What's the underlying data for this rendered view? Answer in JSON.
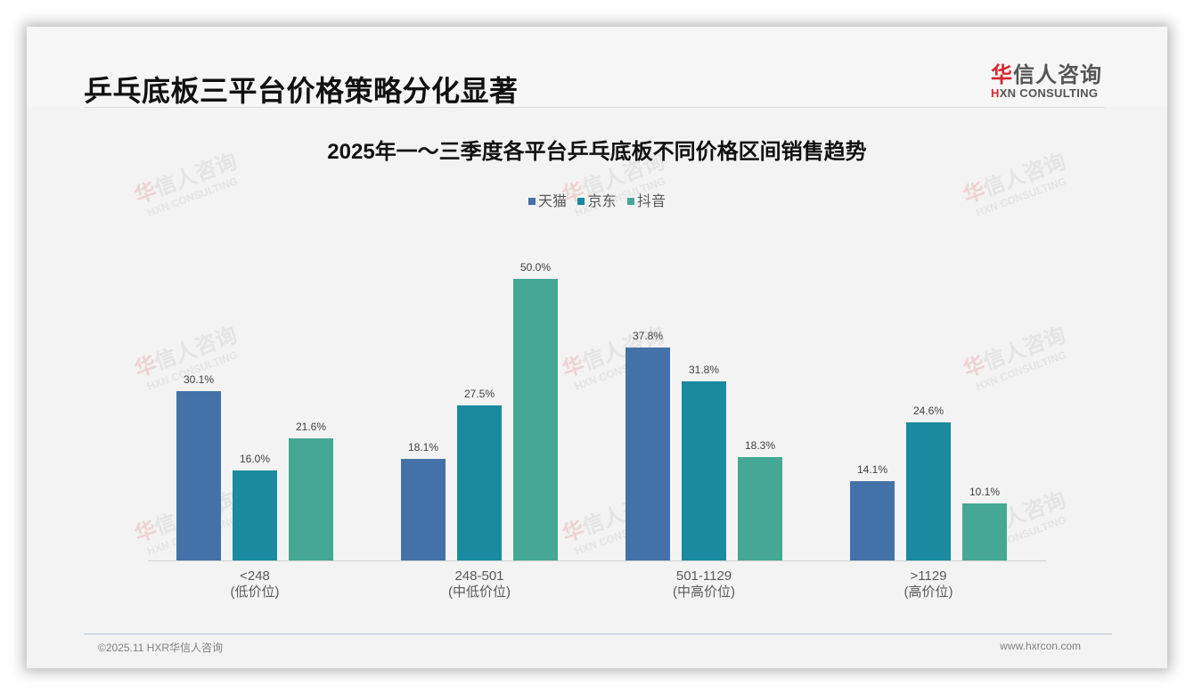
{
  "page": {
    "title": "乒乓底板三平台价格策略分化显著",
    "logo": {
      "cn_red": "华",
      "cn_rest": "信人咨询",
      "en_red": "H",
      "en_rest": "XN CONSULTING"
    },
    "watermark": {
      "cn_red": "华",
      "cn_rest": "信人咨询",
      "en": "HXN CONSULTING"
    },
    "footer": {
      "left": "©2025.11 HXR华信人咨询",
      "right": "www.hxrcon.com"
    }
  },
  "colors": {
    "tmall": "#4472a8",
    "jd": "#1a8aa0",
    "douyin": "#44a894"
  },
  "chart_data": {
    "type": "bar",
    "title": "2025年一～三季度各平台乒乓底板不同价格区间销售趋势",
    "xlabel": "",
    "ylabel": "",
    "ylim": [
      0,
      55
    ],
    "grid": false,
    "legend_position": "top",
    "categories": [
      "<248\n(低价位)",
      "248-501\n(中低价位)",
      "501-1129\n(中高价位)",
      ">1129\n(高价位)"
    ],
    "category_ranges": [
      "<248",
      "248-501",
      "501-1129",
      ">1129"
    ],
    "category_tiers": [
      "(低价位)",
      "(中低价位)",
      "(中高价位)",
      "(高价位)"
    ],
    "series": [
      {
        "name": "天猫",
        "values": [
          30.1,
          18.1,
          37.8,
          14.1
        ],
        "labels": [
          "30.1%",
          "18.1%",
          "37.8%",
          "14.1%"
        ]
      },
      {
        "name": "京东",
        "values": [
          16.0,
          27.5,
          31.8,
          24.6
        ],
        "labels": [
          "16.0%",
          "27.5%",
          "31.8%",
          "24.6%"
        ]
      },
      {
        "name": "抖音",
        "values": [
          21.6,
          50.0,
          18.3,
          10.1
        ],
        "labels": [
          "21.6%",
          "50.0%",
          "18.3%",
          "10.1%"
        ]
      }
    ]
  }
}
